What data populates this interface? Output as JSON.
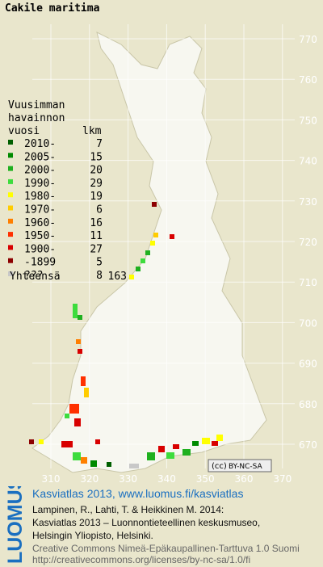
{
  "title": "Cakile maritima",
  "legend": {
    "heading": [
      "Vuusimman",
      "havainnon"
    ],
    "column_year": "vuosi",
    "column_count": "lkm",
    "rows": [
      {
        "label": "2010-",
        "count": 7,
        "color": "#005f00"
      },
      {
        "label": "2005-",
        "count": 15,
        "color": "#008a00"
      },
      {
        "label": "2000-",
        "count": 20,
        "color": "#1fb01f"
      },
      {
        "label": "1990-",
        "count": 29,
        "color": "#3ddc3d"
      },
      {
        "label": "1980-",
        "count": 19,
        "color": "#ffff00"
      },
      {
        "label": "1970-",
        "count": 6,
        "color": "#ffcc00"
      },
      {
        "label": "1960-",
        "count": 16,
        "color": "#ff7f00"
      },
      {
        "label": "1950-",
        "count": 11,
        "color": "#ff3000"
      },
      {
        "label": "1900-",
        "count": 27,
        "color": "#d80000"
      },
      {
        "label": "-1899",
        "count": 5,
        "color": "#8c0000"
      },
      {
        "label": "???",
        "count": 8,
        "color": "#c8c8c8"
      }
    ],
    "total_label": "Yhteensä",
    "total": 163
  },
  "map": {
    "north_labels": [
      770,
      760,
      750,
      740,
      730,
      720,
      710,
      700,
      690,
      680,
      670
    ],
    "east_labels": [
      310,
      320,
      330,
      340,
      350,
      360,
      370
    ],
    "license_badge": [
      "(cc)",
      "BY-NC-SA"
    ]
  },
  "footer": {
    "logo": "LUOMUS",
    "headline": "Kasviatlas 2013, www.luomus.fi/kasviatlas",
    "citation": [
      "Lampinen, R., Lahti, T. & Heikkinen M. 2014:",
      "Kasviatlas 2013 – Luonnontieteellinen keskusmuseo,",
      "Helsingin Yliopisto, Helsinki."
    ],
    "license": [
      "Creative Commons Nimeä-Epäkaupallinen-Tarttuva 1.0 Suomi",
      "http://creativecommons.org/licenses/by-nc-sa/1.0/fi"
    ]
  }
}
